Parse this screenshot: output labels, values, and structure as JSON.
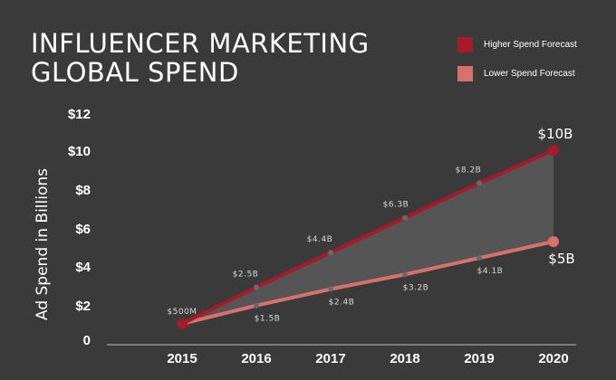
{
  "chart_data": {
    "type": "line",
    "title": "INFLUENCER MARKETING GLOBAL SPEND",
    "title_lines": [
      "INFLUENCER MARKETING",
      "GLOBAL SPEND"
    ],
    "ylabel": "Ad Spend in Billions",
    "xlabel": "",
    "x": [
      2015,
      2016,
      2017,
      2018,
      2019,
      2020
    ],
    "x_tick_labels": [
      "2015",
      "2016",
      "2017",
      "2018",
      "2019",
      "2020"
    ],
    "y_tick_labels": [
      "0",
      "$2",
      "$4",
      "$6",
      "$8",
      "$10",
      "$12"
    ],
    "ylim": [
      0,
      12
    ],
    "grid": false,
    "legend_position": "top-right",
    "series": [
      {
        "name": "Higher Spend Forecast",
        "color": "#a8192a",
        "values": [
          0.5,
          2.5,
          4.4,
          6.3,
          8.2,
          10
        ],
        "point_labels": [
          "$500M",
          "$2.5B",
          "$4.4B",
          "$6.3B",
          "$8.2B",
          "$10B"
        ]
      },
      {
        "name": "Lower Spend Forecast",
        "color": "#d9706e",
        "values": [
          0.5,
          1.5,
          2.4,
          3.2,
          4.1,
          5
        ],
        "point_labels": [
          "",
          "$1.5B",
          "$2.4B",
          "$3.2B",
          "$4.1B",
          "$5B"
        ]
      }
    ],
    "fill_between_color": "#555555"
  }
}
